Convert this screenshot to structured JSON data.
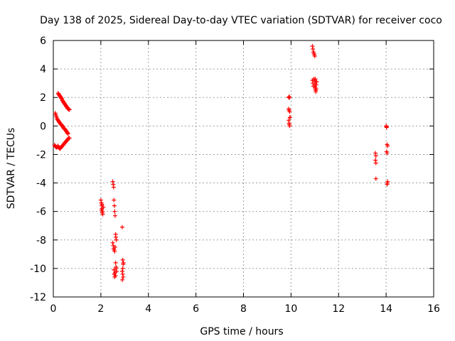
{
  "chart_data": {
    "type": "scatter",
    "title": "Day 138 of 2025, Sidereal Day-to-day VTEC variation (SDTVAR) for receiver coco",
    "xlabel": "GPS time / hours",
    "ylabel": "SDTVAR / TECUs",
    "xlim": [
      0,
      16
    ],
    "ylim": [
      -12,
      6
    ],
    "xticks": [
      0,
      2,
      4,
      6,
      8,
      10,
      12,
      14,
      16
    ],
    "yticks": [
      -12,
      -10,
      -8,
      -6,
      -4,
      -2,
      0,
      2,
      4,
      6
    ],
    "grid": true,
    "marker": "+",
    "color": "#ff0000",
    "series": [
      {
        "name": "SDTVAR",
        "x": [
          0.08,
          0.1,
          0.12,
          0.14,
          0.16,
          0.18,
          0.2,
          0.22,
          0.24,
          0.26,
          0.28,
          0.3,
          0.32,
          0.34,
          0.36,
          0.38,
          0.4,
          0.42,
          0.44,
          0.46,
          0.48,
          0.5,
          0.52,
          0.54,
          0.56,
          0.58,
          0.6,
          0.62,
          0.2,
          0.22,
          0.24,
          0.26,
          0.28,
          0.3,
          0.32,
          0.34,
          0.36,
          0.38,
          0.4,
          0.42,
          0.44,
          0.46,
          0.48,
          0.5,
          0.52,
          0.54,
          0.56,
          0.58,
          0.6,
          0.62,
          0.64,
          0.66,
          0.68,
          0.05,
          0.08,
          0.1,
          0.12,
          0.15,
          0.18,
          0.2,
          0.22,
          0.25,
          0.28,
          0.3,
          0.33,
          0.35,
          0.38,
          0.4,
          0.43,
          0.45,
          0.48,
          0.5,
          0.53,
          0.55,
          0.58,
          0.6,
          0.63,
          0.65,
          0.68,
          2.0,
          2.02,
          2.04,
          2.05,
          2.07,
          2.08,
          2.1,
          2.05,
          2.03,
          2.06,
          2.5,
          2.52,
          2.54,
          2.55,
          2.57,
          2.58,
          2.6,
          2.62,
          2.63,
          2.65,
          2.5,
          2.52,
          2.54,
          2.56,
          2.58,
          2.6,
          2.62,
          2.64,
          2.55,
          2.6,
          2.62,
          2.64,
          2.66,
          2.56,
          2.58,
          2.9,
          2.92,
          2.94,
          2.9,
          2.92,
          2.94,
          2.9,
          2.92,
          2.95,
          9.9,
          9.92,
          9.94,
          9.9,
          9.92,
          9.94,
          9.95,
          9.9,
          9.92,
          9.94,
          9.96,
          9.93,
          10.9,
          10.92,
          10.94,
          10.96,
          10.98,
          11.0,
          11.02,
          11.04,
          11.06,
          10.9,
          10.92,
          10.94,
          10.96,
          10.98,
          11.0,
          11.02,
          11.04,
          11.06,
          11.08,
          11.0,
          11.02,
          11.04,
          13.55,
          13.57,
          13.55,
          13.57,
          13.57,
          14.0,
          14.02,
          14.04,
          14.06,
          14.02,
          14.04,
          14.06,
          14.04,
          14.06,
          14.02
        ],
        "y": [
          0.9,
          0.8,
          0.7,
          0.6,
          0.5,
          0.45,
          0.4,
          0.35,
          0.3,
          0.25,
          0.2,
          0.15,
          0.1,
          0.1,
          0.05,
          0.0,
          -0.05,
          -0.1,
          -0.15,
          -0.2,
          -0.2,
          -0.25,
          -0.3,
          -0.35,
          -0.4,
          -0.45,
          -0.5,
          -0.55,
          2.3,
          2.25,
          2.2,
          2.15,
          2.1,
          2.05,
          2.0,
          1.95,
          1.9,
          1.8,
          1.75,
          1.7,
          1.65,
          1.6,
          1.55,
          1.5,
          1.45,
          1.4,
          1.35,
          1.3,
          1.25,
          1.2,
          1.2,
          1.15,
          1.15,
          -1.35,
          -1.4,
          -1.45,
          -1.5,
          -1.5,
          -1.45,
          -1.4,
          -1.5,
          -1.55,
          -1.6,
          -1.55,
          -1.5,
          -1.45,
          -1.4,
          -1.35,
          -1.3,
          -1.25,
          -1.2,
          -1.15,
          -1.1,
          -1.05,
          -1.0,
          -0.95,
          -0.9,
          -0.85,
          -0.85,
          -5.2,
          -5.4,
          -5.6,
          -5.8,
          -6.0,
          -6.2,
          -5.7,
          -5.5,
          -5.9,
          -6.1,
          -3.9,
          -4.1,
          -4.3,
          -5.2,
          -5.6,
          -6.0,
          -6.3,
          -7.6,
          -7.8,
          -8.0,
          -8.2,
          -8.4,
          -8.6,
          -8.7,
          -8.8,
          -8.5,
          -9.6,
          -9.9,
          -10.1,
          -10.3,
          -10.5,
          -10.0,
          -10.2,
          -10.4,
          -10.6,
          -7.1,
          -9.4,
          -9.7,
          -10.2,
          -10.4,
          -10.6,
          -10.8,
          -10.0,
          -9.6,
          2.0,
          2.05,
          2.0,
          1.2,
          1.1,
          1.0,
          0.6,
          0.4,
          0.2,
          0.0,
          0.6,
          0.1,
          5.6,
          5.4,
          5.2,
          5.1,
          5.0,
          4.9,
          3.3,
          3.1,
          2.9,
          3.2,
          3.0,
          2.8,
          3.3,
          3.2,
          2.9,
          2.7,
          2.5,
          2.6,
          3.1,
          2.8,
          2.6,
          2.4,
          -1.9,
          -2.1,
          -2.4,
          -2.6,
          -3.7,
          0.0,
          -0.1,
          -1.3,
          -1.4,
          -1.8,
          -1.9,
          -4.0,
          -4.1,
          -3.9,
          -0.05
        ]
      }
    ]
  }
}
